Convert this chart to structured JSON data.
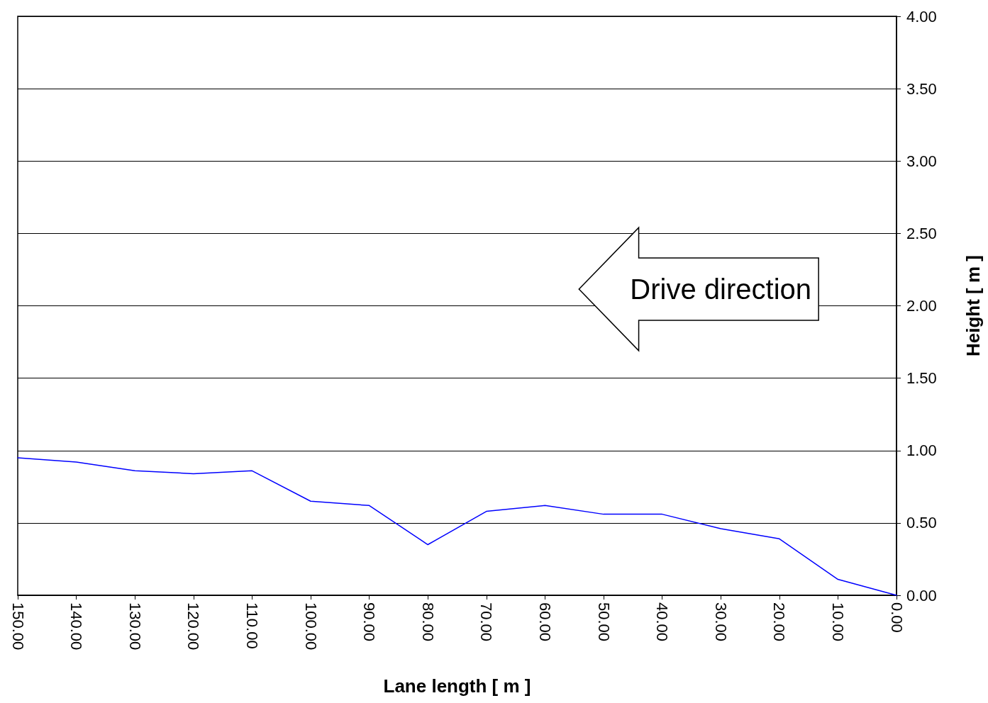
{
  "chart_data": {
    "type": "line",
    "xlabel": "Lane length [ m ]",
    "ylabel": "Height [ m ]",
    "x": [
      150,
      140,
      130,
      120,
      110,
      100,
      90,
      80,
      70,
      60,
      50,
      40,
      30,
      20,
      10,
      0
    ],
    "series": [
      {
        "color": "#0000ff",
        "values": [
          0.95,
          0.92,
          0.86,
          0.84,
          0.86,
          0.65,
          0.62,
          0.35,
          0.58,
          0.62,
          0.56,
          0.56,
          0.46,
          0.39,
          0.11,
          0
        ]
      }
    ],
    "xlim": [
      150,
      0
    ],
    "xticks": [
      {
        "value": 150,
        "label": "150.00"
      },
      {
        "value": 140,
        "label": "140.00"
      },
      {
        "value": 130,
        "label": "130.00"
      },
      {
        "value": 120,
        "label": "120.00"
      },
      {
        "value": 110,
        "label": "110.00"
      },
      {
        "value": 100,
        "label": "100.00"
      },
      {
        "value": 90,
        "label": "90.00"
      },
      {
        "value": 80,
        "label": "80.00"
      },
      {
        "value": 70,
        "label": "70.00"
      },
      {
        "value": 60,
        "label": "60.00"
      },
      {
        "value": 50,
        "label": "50.00"
      },
      {
        "value": 40,
        "label": "40.00"
      },
      {
        "value": 30,
        "label": "30.00"
      },
      {
        "value": 20,
        "label": "20.00"
      },
      {
        "value": 10,
        "label": "10.00"
      },
      {
        "value": 0,
        "label": "0.00"
      }
    ],
    "ylim": [
      0,
      4
    ],
    "yticks": [
      {
        "value": 0,
        "label": "0.00"
      },
      {
        "value": 0.5,
        "label": "0.50"
      },
      {
        "value": 1,
        "label": "1.00"
      },
      {
        "value": 1.5,
        "label": "1.50"
      },
      {
        "value": 2,
        "label": "2.00"
      },
      {
        "value": 2.5,
        "label": "2.50"
      },
      {
        "value": 3,
        "label": "3.00"
      },
      {
        "value": 3.5,
        "label": "3.50"
      },
      {
        "value": 4,
        "label": "4.00"
      }
    ],
    "grid": "y",
    "marker": "none",
    "line_style": "solid",
    "annotations": [
      "Drive direction"
    ]
  }
}
